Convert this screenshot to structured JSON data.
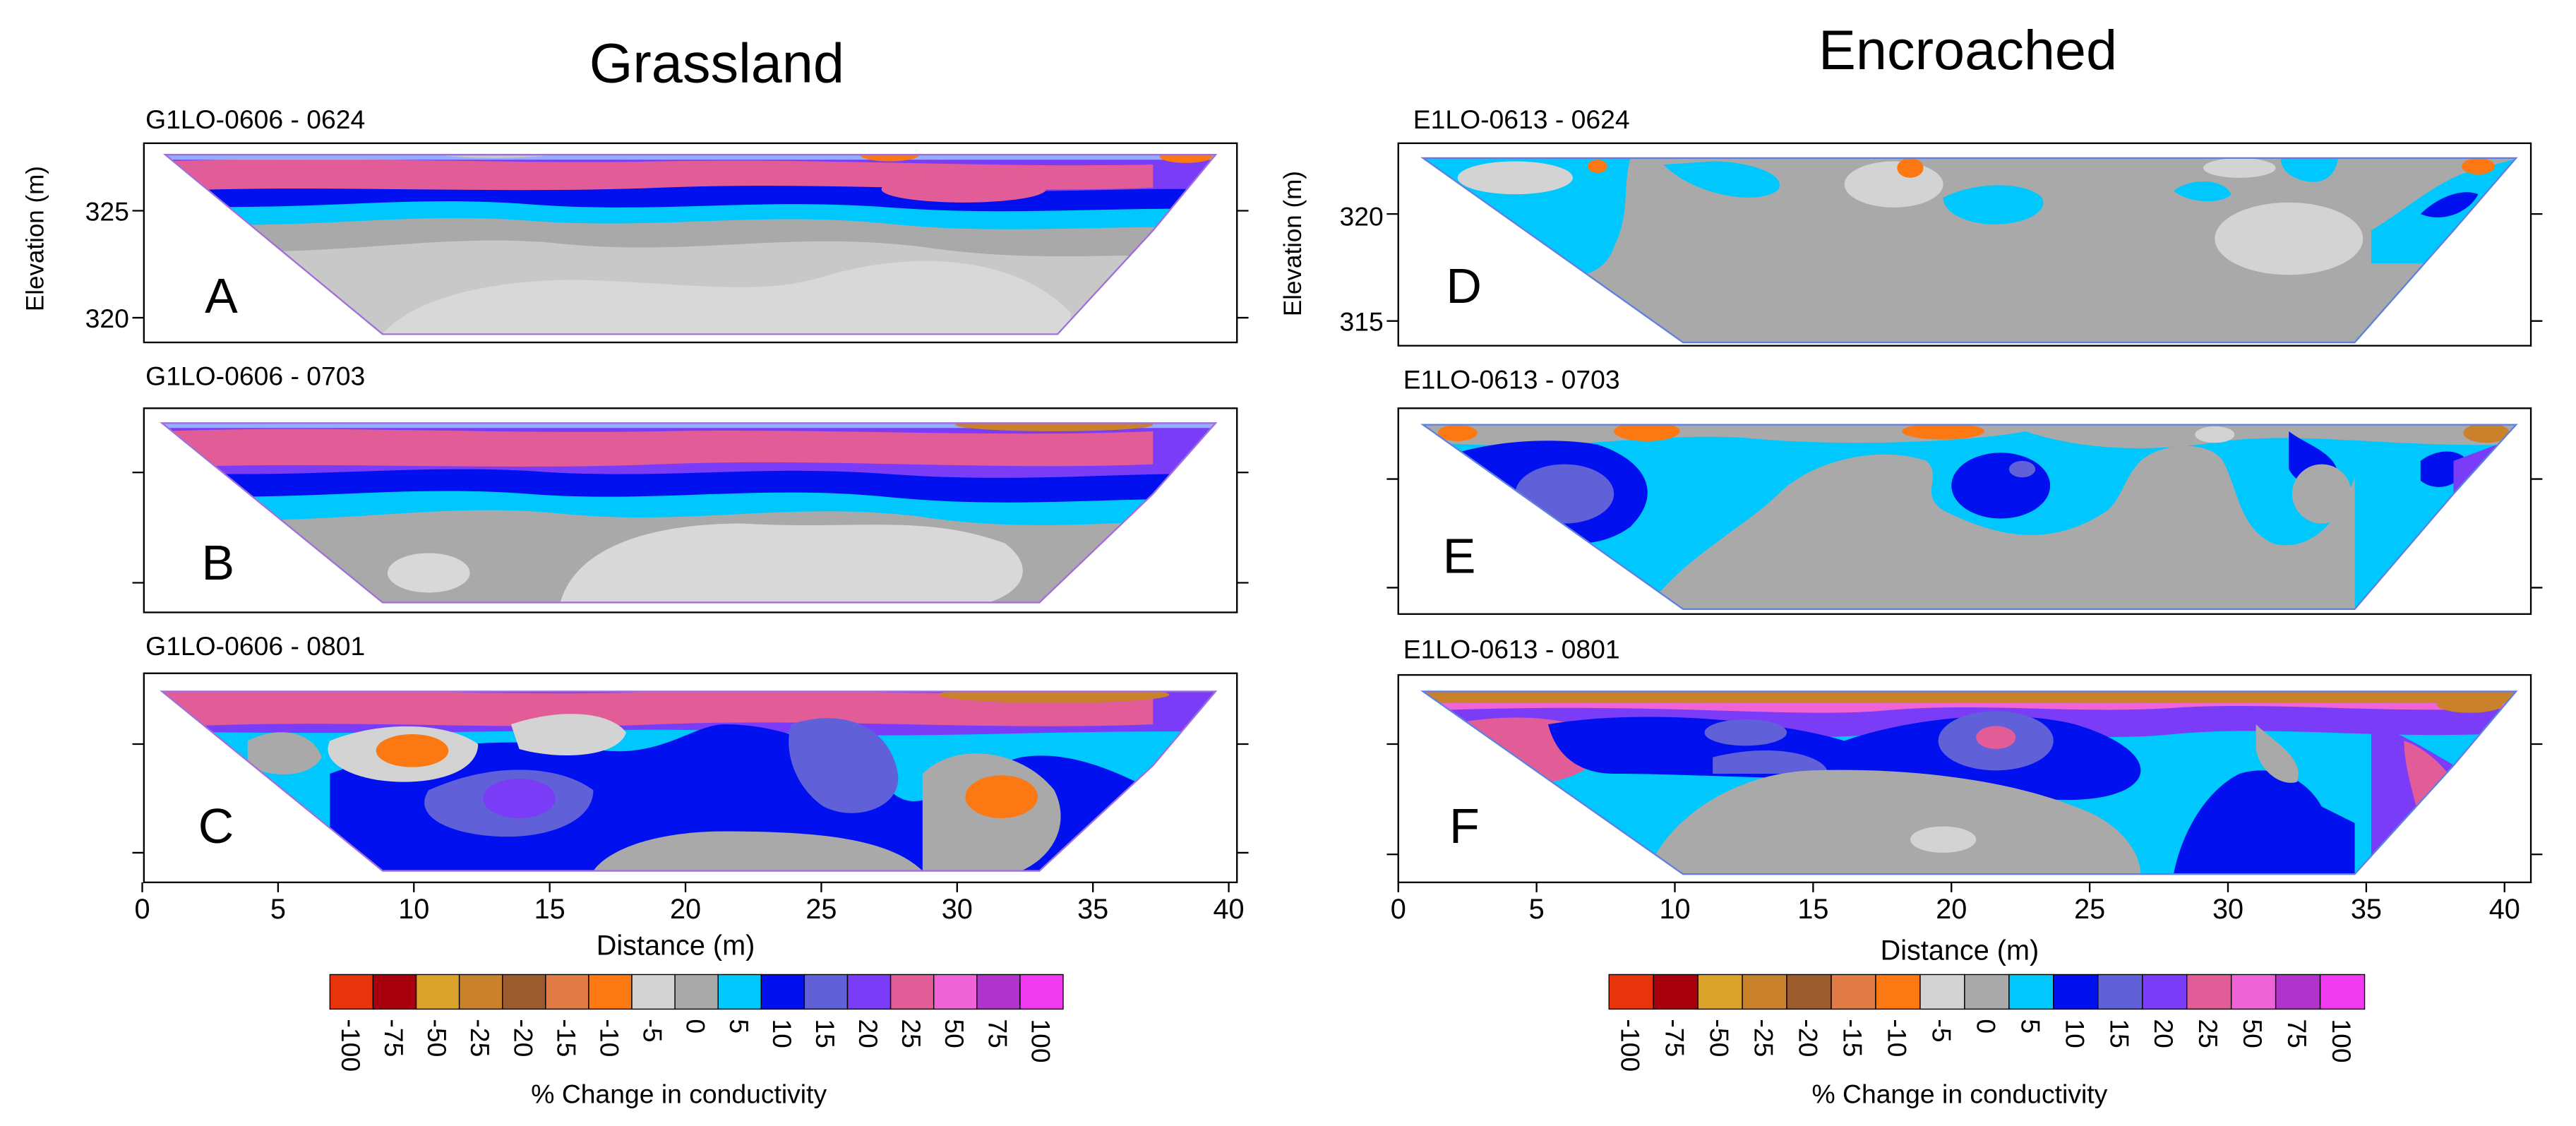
{
  "chart_data": {
    "type": "heatmap",
    "xlabel": "Distance (m)",
    "ylabel": "Elevation (m)",
    "x_ticks": [
      0,
      5,
      10,
      15,
      20,
      25,
      30,
      35,
      40
    ],
    "columns": [
      {
        "title": "Grassland",
        "xlabel": "Distance (m)"
      },
      {
        "title": "Encroached",
        "xlabel": "Distance (m)"
      }
    ],
    "panels": [
      {
        "title": "G1LO-0606 - 0624",
        "letter": "A",
        "ylabel": "Elevation (m)",
        "y_ticks": [
          325,
          320
        ]
      },
      {
        "title": "G1LO-0606 - 0703",
        "letter": "B"
      },
      {
        "title": "G1LO-0606 - 0801",
        "letter": "C"
      },
      {
        "title": "E1LO-0613 - 0624",
        "letter": "D",
        "ylabel": "Elevation (m)",
        "y_ticks": [
          320,
          315
        ]
      },
      {
        "title": "E1LO-0613 - 0703",
        "letter": "E"
      },
      {
        "title": "E1LO-0613 - 0801",
        "letter": "F"
      }
    ],
    "colorbar": {
      "label": "% Change in conductivity",
      "ticks": [
        "-100",
        "-75",
        "-50",
        "-25",
        "-20",
        "-15",
        "-10",
        "-5",
        "0",
        "5",
        "10",
        "15",
        "20",
        "25",
        "50",
        "75",
        "100"
      ],
      "colors": [
        "#e8340c",
        "#a8000f",
        "#dba22b",
        "#c9812c",
        "#9c5b2d",
        "#e07b46",
        "#fb7812",
        "#d3d3d3",
        "#a9a9a9",
        "#00c8ff",
        "#0010ee",
        "#6060d8",
        "#7a3cf6",
        "#e25c97",
        "#ee64d6",
        "#b033cc",
        "#f03af0"
      ]
    }
  }
}
